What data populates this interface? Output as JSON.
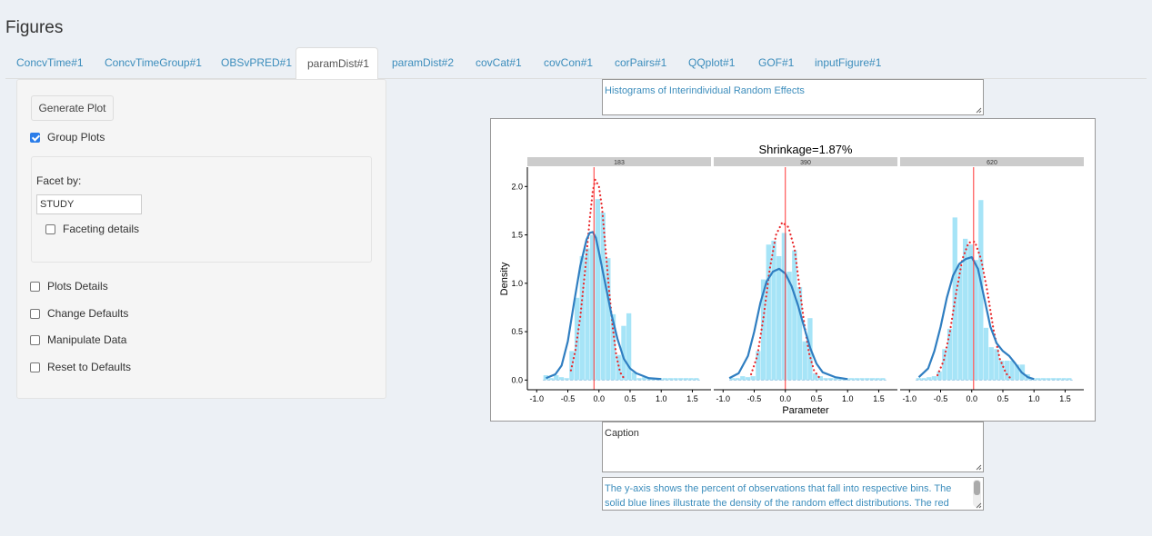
{
  "page": {
    "title": "Figures"
  },
  "tabs": [
    {
      "label": "ConcvTime#1"
    },
    {
      "label": "ConcvTimeGroup#1"
    },
    {
      "label": "OBSvPRED#1"
    },
    {
      "label": "paramDist#1",
      "active": true
    },
    {
      "label": "paramDist#2"
    },
    {
      "label": "covCat#1"
    },
    {
      "label": "covCon#1"
    },
    {
      "label": "corPairs#1"
    },
    {
      "label": "QQplot#1"
    },
    {
      "label": "GOF#1"
    },
    {
      "label": "inputFigure#1"
    }
  ],
  "sidebar": {
    "generate_label": "Generate Plot",
    "group_plots_label": "Group Plots",
    "group_plots_checked": true,
    "facet_by_label": "Facet by:",
    "facet_by_value": "STUDY",
    "faceting_details_label": "Faceting details",
    "plots_details_label": "Plots Details",
    "change_defaults_label": "Change Defaults",
    "manipulate_data_label": "Manipulate Data",
    "reset_defaults_label": "Reset to Defaults"
  },
  "figure": {
    "title_text": "Histograms of Interindividual Random Effects",
    "caption_text": "Caption",
    "footnote_text": "The y-axis shows the percent of observations that fall into respective bins.  The solid blue lines illustrate the density of the random effect distributions.  The red"
  },
  "colors": {
    "accent": "#3c8dbc",
    "histogram_fill": "#a6e4f7",
    "density_line": "#2f7ec1",
    "normal_dotted": "#e8282b",
    "reference_line": "#ff3333",
    "strip": "#cccccc"
  },
  "chart_data": {
    "type": "bar",
    "title": "Shrinkage=1.87%",
    "xlabel": "Parameter",
    "ylabel": "Density",
    "xlim": [
      -1.15,
      1.8
    ],
    "ylim": [
      -0.1,
      2.2
    ],
    "xticks": [
      -1.0,
      -0.5,
      0.0,
      0.5,
      1.0,
      1.5
    ],
    "xtick_labels": [
      "-1.0",
      "-0.5",
      "0.0",
      "0.5",
      "1.0",
      "1.5"
    ],
    "yticks": [
      0.0,
      0.5,
      1.0,
      1.5,
      2.0
    ],
    "ytick_labels": [
      "0.0",
      "0.5",
      "1.0",
      "1.5",
      "2.0"
    ],
    "bin_width": 0.0833,
    "grid": false,
    "panels": [
      {
        "label": "183",
        "reference_x": -0.08,
        "bins": [
          {
            "x": -0.85,
            "y": 0.05
          },
          {
            "x": -0.767,
            "y": 0.02
          },
          {
            "x": -0.683,
            "y": 0.05
          },
          {
            "x": -0.6,
            "y": 0.03
          },
          {
            "x": -0.517,
            "y": 0.02
          },
          {
            "x": -0.433,
            "y": 0.3
          },
          {
            "x": -0.35,
            "y": 0.85
          },
          {
            "x": -0.267,
            "y": 1.28
          },
          {
            "x": -0.183,
            "y": 1.36
          },
          {
            "x": -0.1,
            "y": 1.5
          },
          {
            "x": -0.017,
            "y": 1.87
          },
          {
            "x": 0.067,
            "y": 1.73
          },
          {
            "x": 0.15,
            "y": 1.26
          },
          {
            "x": 0.233,
            "y": 0.68
          },
          {
            "x": 0.317,
            "y": 0.26
          },
          {
            "x": 0.4,
            "y": 0.56
          },
          {
            "x": 0.483,
            "y": 0.69
          },
          {
            "x": 0.567,
            "y": 0.08
          },
          {
            "x": 0.65,
            "y": 0.02
          },
          {
            "x": 0.733,
            "y": 0.03
          },
          {
            "x": 0.817,
            "y": 0.02
          },
          {
            "x": 0.9,
            "y": 0.02
          },
          {
            "x": 0.983,
            "y": 0.02
          },
          {
            "x": 1.067,
            "y": 0.02
          },
          {
            "x": 1.15,
            "y": 0.02
          },
          {
            "x": 1.233,
            "y": 0.02
          },
          {
            "x": 1.317,
            "y": 0.02
          },
          {
            "x": 1.4,
            "y": 0.02
          },
          {
            "x": 1.483,
            "y": 0.02
          },
          {
            "x": 1.567,
            "y": 0.02
          }
        ],
        "density": [
          [
            -0.85,
            0.02
          ],
          [
            -0.7,
            0.06
          ],
          [
            -0.6,
            0.15
          ],
          [
            -0.5,
            0.4
          ],
          [
            -0.4,
            0.8
          ],
          [
            -0.3,
            1.18
          ],
          [
            -0.2,
            1.45
          ],
          [
            -0.15,
            1.52
          ],
          [
            -0.1,
            1.53
          ],
          [
            -0.05,
            1.47
          ],
          [
            0.0,
            1.32
          ],
          [
            0.1,
            1.0
          ],
          [
            0.2,
            0.68
          ],
          [
            0.3,
            0.42
          ],
          [
            0.4,
            0.22
          ],
          [
            0.5,
            0.12
          ],
          [
            0.6,
            0.07
          ],
          [
            0.8,
            0.02
          ],
          [
            1.0,
            0.01
          ]
        ],
        "normal": [
          [
            -0.45,
            0.1
          ],
          [
            -0.38,
            0.3
          ],
          [
            -0.3,
            0.65
          ],
          [
            -0.22,
            1.15
          ],
          [
            -0.15,
            1.65
          ],
          [
            -0.1,
            1.95
          ],
          [
            -0.06,
            2.07
          ],
          [
            0.0,
            2.0
          ],
          [
            0.05,
            1.78
          ],
          [
            0.1,
            1.4
          ],
          [
            0.16,
            0.95
          ],
          [
            0.22,
            0.55
          ],
          [
            0.28,
            0.25
          ],
          [
            0.34,
            0.08
          ],
          [
            0.4,
            0.02
          ]
        ]
      },
      {
        "label": "390",
        "reference_x": 0.0,
        "bins": [
          {
            "x": -0.85,
            "y": 0.02
          },
          {
            "x": -0.767,
            "y": 0.02
          },
          {
            "x": -0.683,
            "y": 0.04
          },
          {
            "x": -0.6,
            "y": 0.03
          },
          {
            "x": -0.517,
            "y": 0.04
          },
          {
            "x": -0.433,
            "y": 0.3
          },
          {
            "x": -0.35,
            "y": 1.04
          },
          {
            "x": -0.267,
            "y": 1.4
          },
          {
            "x": -0.183,
            "y": 1.44
          },
          {
            "x": -0.1,
            "y": 1.28
          },
          {
            "x": -0.017,
            "y": 1.52
          },
          {
            "x": 0.067,
            "y": 1.12
          },
          {
            "x": 0.15,
            "y": 1.34
          },
          {
            "x": 0.233,
            "y": 0.96
          },
          {
            "x": 0.317,
            "y": 0.4
          },
          {
            "x": 0.4,
            "y": 0.64
          },
          {
            "x": 0.483,
            "y": 0.07
          },
          {
            "x": 0.567,
            "y": 0.04
          },
          {
            "x": 0.65,
            "y": 0.02
          },
          {
            "x": 0.733,
            "y": 0.02
          },
          {
            "x": 0.817,
            "y": 0.02
          },
          {
            "x": 0.9,
            "y": 0.02
          },
          {
            "x": 0.983,
            "y": 0.02
          },
          {
            "x": 1.067,
            "y": 0.02
          },
          {
            "x": 1.15,
            "y": 0.02
          },
          {
            "x": 1.233,
            "y": 0.02
          },
          {
            "x": 1.317,
            "y": 0.02
          },
          {
            "x": 1.4,
            "y": 0.02
          },
          {
            "x": 1.483,
            "y": 0.02
          },
          {
            "x": 1.567,
            "y": 0.02
          }
        ],
        "density": [
          [
            -0.9,
            0.02
          ],
          [
            -0.75,
            0.07
          ],
          [
            -0.6,
            0.25
          ],
          [
            -0.5,
            0.5
          ],
          [
            -0.4,
            0.8
          ],
          [
            -0.3,
            1.02
          ],
          [
            -0.2,
            1.12
          ],
          [
            -0.1,
            1.15
          ],
          [
            0.0,
            1.1
          ],
          [
            0.1,
            0.97
          ],
          [
            0.2,
            0.78
          ],
          [
            0.3,
            0.55
          ],
          [
            0.4,
            0.33
          ],
          [
            0.5,
            0.17
          ],
          [
            0.6,
            0.08
          ],
          [
            0.8,
            0.03
          ],
          [
            1.0,
            0.01
          ]
        ],
        "normal": [
          [
            -0.55,
            0.06
          ],
          [
            -0.45,
            0.25
          ],
          [
            -0.35,
            0.65
          ],
          [
            -0.25,
            1.15
          ],
          [
            -0.15,
            1.5
          ],
          [
            -0.05,
            1.63
          ],
          [
            0.05,
            1.58
          ],
          [
            0.15,
            1.35
          ],
          [
            0.22,
            1.0
          ],
          [
            0.3,
            0.6
          ],
          [
            0.38,
            0.28
          ],
          [
            0.46,
            0.1
          ],
          [
            0.54,
            0.03
          ]
        ]
      },
      {
        "label": "620",
        "reference_x": 0.03,
        "bins": [
          {
            "x": -0.85,
            "y": 0.02
          },
          {
            "x": -0.767,
            "y": 0.02
          },
          {
            "x": -0.683,
            "y": 0.03
          },
          {
            "x": -0.6,
            "y": 0.04
          },
          {
            "x": -0.517,
            "y": 0.09
          },
          {
            "x": -0.433,
            "y": 0.32
          },
          {
            "x": -0.35,
            "y": 0.53
          },
          {
            "x": -0.267,
            "y": 1.68
          },
          {
            "x": -0.183,
            "y": 1.18
          },
          {
            "x": -0.1,
            "y": 1.46
          },
          {
            "x": -0.017,
            "y": 1.4
          },
          {
            "x": 0.067,
            "y": 1.24
          },
          {
            "x": 0.15,
            "y": 1.86
          },
          {
            "x": 0.233,
            "y": 0.54
          },
          {
            "x": 0.317,
            "y": 0.34
          },
          {
            "x": 0.4,
            "y": 0.32
          },
          {
            "x": 0.483,
            "y": 0.2
          },
          {
            "x": 0.567,
            "y": 0.2
          },
          {
            "x": 0.65,
            "y": 0.2
          },
          {
            "x": 0.733,
            "y": 0.16
          },
          {
            "x": 0.817,
            "y": 0.16
          },
          {
            "x": 0.9,
            "y": 0.06
          },
          {
            "x": 0.983,
            "y": 0.02
          },
          {
            "x": 1.067,
            "y": 0.02
          },
          {
            "x": 1.15,
            "y": 0.02
          },
          {
            "x": 1.233,
            "y": 0.02
          },
          {
            "x": 1.317,
            "y": 0.02
          },
          {
            "x": 1.4,
            "y": 0.02
          },
          {
            "x": 1.483,
            "y": 0.02
          },
          {
            "x": 1.567,
            "y": 0.02
          }
        ],
        "density": [
          [
            -0.85,
            0.03
          ],
          [
            -0.7,
            0.12
          ],
          [
            -0.6,
            0.3
          ],
          [
            -0.5,
            0.55
          ],
          [
            -0.4,
            0.85
          ],
          [
            -0.3,
            1.08
          ],
          [
            -0.2,
            1.2
          ],
          [
            -0.1,
            1.25
          ],
          [
            0.0,
            1.27
          ],
          [
            0.1,
            1.15
          ],
          [
            0.2,
            0.85
          ],
          [
            0.3,
            0.55
          ],
          [
            0.4,
            0.38
          ],
          [
            0.5,
            0.3
          ],
          [
            0.6,
            0.25
          ],
          [
            0.7,
            0.17
          ],
          [
            0.8,
            0.08
          ],
          [
            0.9,
            0.03
          ],
          [
            1.0,
            0.01
          ]
        ],
        "normal": [
          [
            -0.55,
            0.05
          ],
          [
            -0.45,
            0.2
          ],
          [
            -0.35,
            0.5
          ],
          [
            -0.25,
            0.9
          ],
          [
            -0.15,
            1.25
          ],
          [
            -0.05,
            1.42
          ],
          [
            0.05,
            1.43
          ],
          [
            0.15,
            1.25
          ],
          [
            0.25,
            0.92
          ],
          [
            0.35,
            0.52
          ],
          [
            0.45,
            0.22
          ],
          [
            0.55,
            0.07
          ],
          [
            0.62,
            0.02
          ]
        ]
      }
    ]
  }
}
